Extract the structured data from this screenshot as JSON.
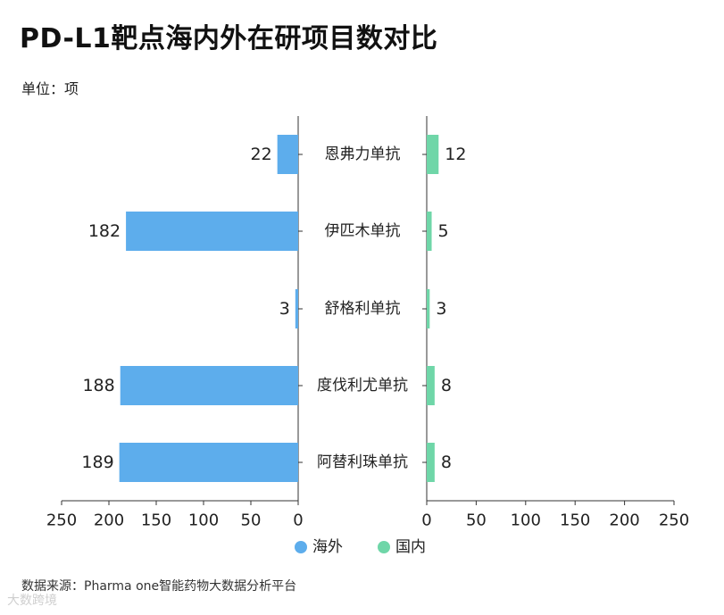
{
  "title": "PD-L1靶点海内外在研项目数对比",
  "unit_label": "单位：项",
  "source": "数据来源：Pharma one智能药物大数据分析平台",
  "watermark": "大数跨境",
  "colors": {
    "overseas": "#5DADEC",
    "domestic": "#6FD6A8",
    "axis": "#333333"
  },
  "chart_data": {
    "type": "bar",
    "orientation": "horizontal-butterfly",
    "title": "PD-L1靶点海内外在研项目数对比",
    "categories": [
      "恩弗力单抗",
      "伊匹木单抗",
      "舒格利单抗",
      "度伐利尤单抗",
      "阿替利珠单抗"
    ],
    "series": [
      {
        "name": "海外",
        "values": [
          22,
          182,
          3,
          188,
          189
        ]
      },
      {
        "name": "国内",
        "values": [
          12,
          5,
          3,
          8,
          8
        ]
      }
    ],
    "xlim": [
      0,
      250
    ],
    "ticks": [
      "250",
      "200",
      "150",
      "100",
      "50",
      "0",
      "0",
      "50",
      "100",
      "150",
      "200",
      "250"
    ],
    "legend": [
      "海外",
      "国内"
    ],
    "legend_position": "bottom-center",
    "grid": false
  }
}
